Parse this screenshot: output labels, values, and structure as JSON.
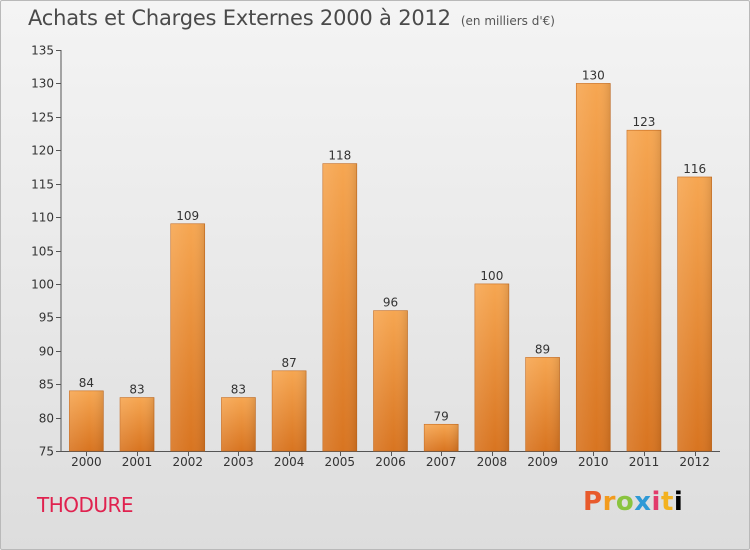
{
  "header": {
    "title": "Achats et Charges Externes 2000 à 2012",
    "subtitle": "(en milliers d'€)"
  },
  "footer": {
    "city": "THODURE",
    "logo": [
      "P",
      "r",
      "o",
      "x",
      "i",
      "t",
      "i"
    ]
  },
  "colors": {
    "bar_light": "#f6a651",
    "bar_dark": "#d87420",
    "city": "#e0224f"
  },
  "chart_data": {
    "type": "bar",
    "title": "Achats et Charges Externes 2000 à 2012",
    "subtitle": "(en milliers d'€)",
    "categories": [
      "2000",
      "2001",
      "2002",
      "2003",
      "2004",
      "2005",
      "2006",
      "2007",
      "2008",
      "2009",
      "2010",
      "2011",
      "2012"
    ],
    "values": [
      84,
      83,
      109,
      83,
      87,
      118,
      96,
      79,
      100,
      89,
      130,
      123,
      116
    ],
    "ylim": [
      75,
      135
    ],
    "yticks": [
      75,
      80,
      85,
      90,
      95,
      100,
      105,
      110,
      115,
      120,
      125,
      130,
      135
    ],
    "grid": false,
    "data_labels": true
  }
}
